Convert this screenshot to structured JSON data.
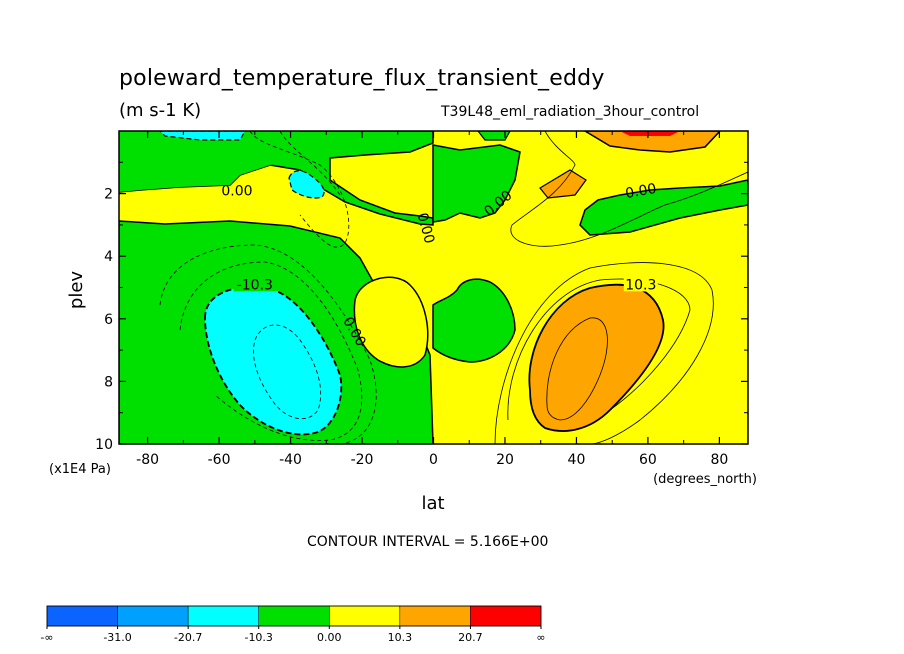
{
  "chart_data": {
    "type": "contour",
    "title": "poleward_temperature_flux_transient_eddy",
    "units": "(m s-1 K)",
    "dataset": "T39L48_eml_radiation_3hour_control",
    "xlabel": "lat",
    "x_units": "(degrees_north)",
    "ylabel": "plev",
    "y_units": "(x1E4 Pa)",
    "xlim": [
      -88,
      88
    ],
    "ylim": [
      10,
      0
    ],
    "x_ticks": [
      "-80",
      "-60",
      "-40",
      "-20",
      "0",
      "20",
      "40",
      "60",
      "80"
    ],
    "y_ticks": [
      "2",
      "4",
      "6",
      "8",
      "10"
    ],
    "contour_interval_text": "CONTOUR INTERVAL = 5.166E+00",
    "contour_labels": [
      "0.00",
      "0.00",
      "0.00",
      "0.00",
      "0.00",
      "-10.3",
      "10.3"
    ],
    "colorbar": {
      "colors": [
        "#0a64ff",
        "#00a0ff",
        "#00ffff",
        "#00e000",
        "#ffff00",
        "#ffa500",
        "#ff0000"
      ],
      "labels": [
        "-∞",
        "-31.0",
        "-20.7",
        "-10.3",
        "0.00",
        "10.3",
        "20.7",
        "∞"
      ]
    }
  }
}
